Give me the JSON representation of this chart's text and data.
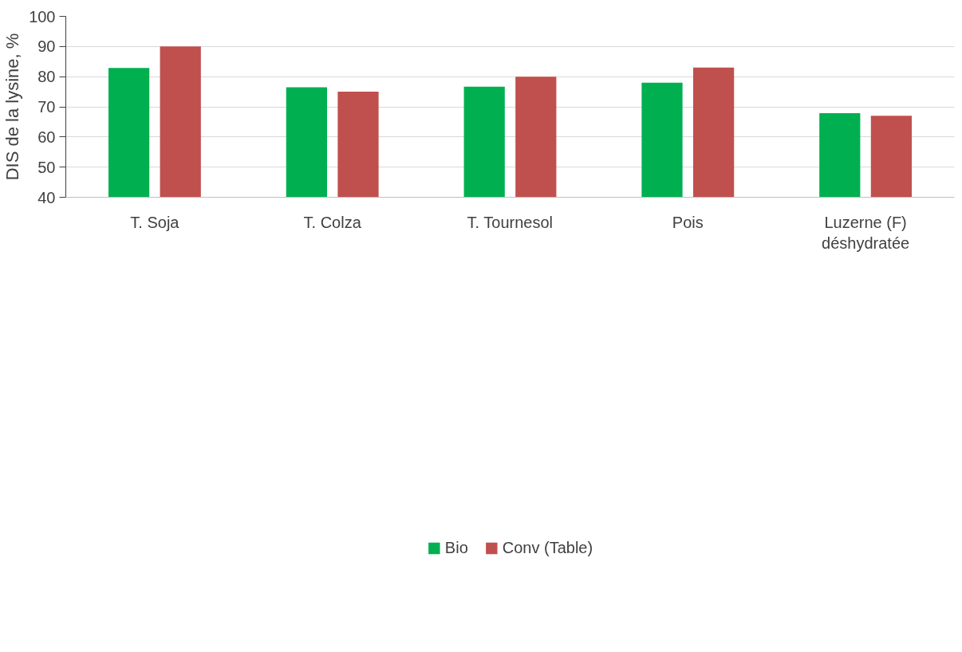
{
  "chart_data": {
    "type": "bar",
    "ylabel": "DIS de la lysine, %",
    "categories": [
      "T. Soja",
      "T. Colza",
      "T. Tournesol",
      "Pois",
      "Luzerne (F)\ndéshydratée"
    ],
    "series": [
      {
        "name": "Bio",
        "color": "#00b050",
        "values": [
          82.9,
          76.5,
          76.7,
          78.0,
          67.9
        ]
      },
      {
        "name": "Conv (Table)",
        "color": "#c0504d",
        "values": [
          90.0,
          75.0,
          80.0,
          83.0,
          67.0
        ]
      }
    ],
    "ylim": [
      40,
      100
    ],
    "yticks": [
      40,
      50,
      60,
      70,
      80,
      90,
      100
    ],
    "grid": "y",
    "legend": "bottom"
  }
}
